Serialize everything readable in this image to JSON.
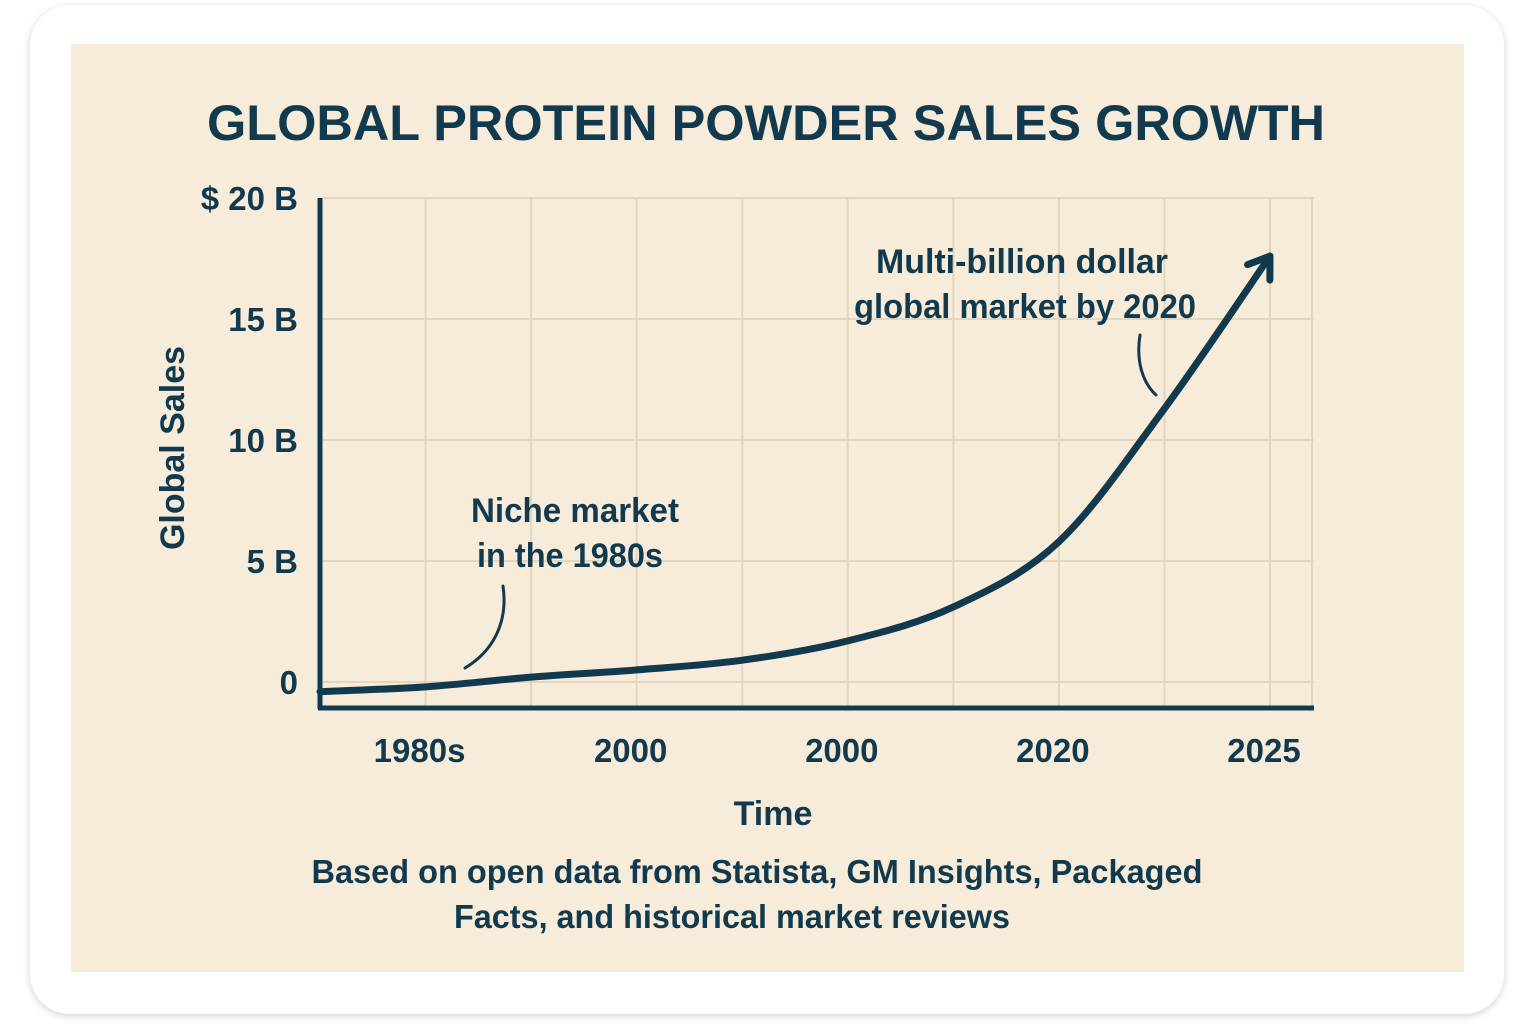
{
  "chart_data": {
    "type": "line",
    "title": "GLOBAL PROTEIN POWDER SALES GROWTH",
    "xlabel": "Time",
    "ylabel": "Global Sales",
    "categories": [
      "",
      "1980s",
      "",
      "2000",
      "",
      "2000",
      "",
      "2020",
      "",
      "2025"
    ],
    "x_tick_labels": [
      "1980s",
      "2000",
      "2000",
      "2020",
      "2025"
    ],
    "y_tick_labels": [
      "0",
      "5 B",
      "10 B",
      "15 B",
      "$ 20 B"
    ],
    "y_ticks": [
      0,
      5,
      10,
      15,
      20
    ],
    "ylim": [
      0,
      20
    ],
    "grid": true,
    "series": [
      {
        "values": [
          -0.4,
          -0.2,
          0.2,
          0.5,
          0.9,
          1.7,
          3.1,
          5.8,
          11.3,
          17.6
        ],
        "end_marker": "arrow"
      }
    ],
    "annotations": [
      {
        "lines": [
          "Niche market",
          "in the 1980s"
        ]
      },
      {
        "lines": [
          "Multi-billion dollar",
          "global market by 2020"
        ]
      }
    ],
    "footnote": [
      "Based on open data from Statista, GM Insights, Packaged",
      "Facts, and historical market reviews"
    ],
    "colors": {
      "background": "#f7ecd9",
      "ink": "#123a4f",
      "grid": "#e3d6c0",
      "card": "#ffffff"
    }
  }
}
